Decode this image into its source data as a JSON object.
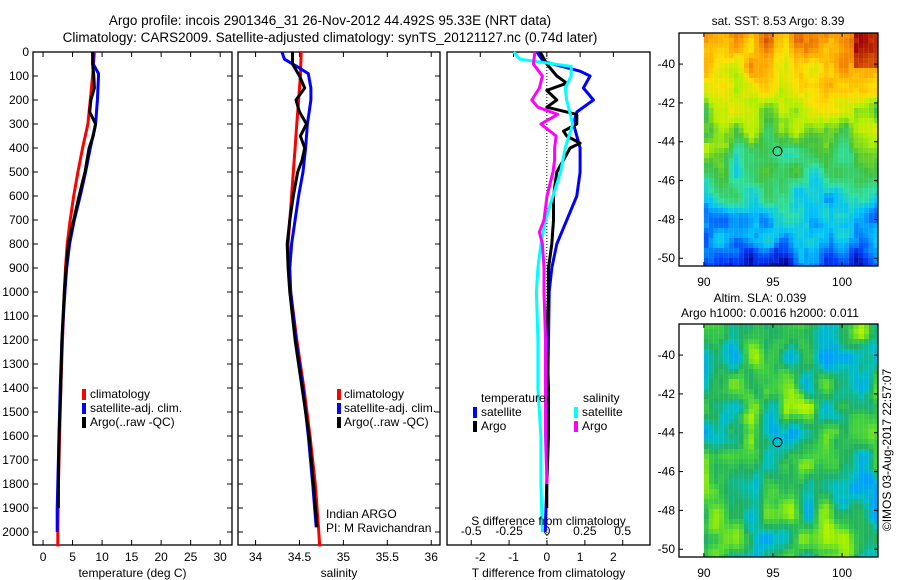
{
  "header": {
    "title_line1": "Argo profile: incois 2901346_31 26-Nov-2012 44.492S 95.33E (NRT data)",
    "title_line2": "Climatology: CARS2009. Satellite-adjusted climatology: synTS_20121127.nc (0.74d later)"
  },
  "chart_data": [
    {
      "type": "line",
      "name": "temperature-profile",
      "xlabel": "temperature (deg C)",
      "ylabel": "depth",
      "xlim": [
        -1.7,
        32
      ],
      "ylim": [
        2060,
        0
      ],
      "xticks": [
        0,
        5,
        10,
        15,
        20,
        25,
        30
      ],
      "yticks": [
        0,
        100,
        200,
        300,
        400,
        500,
        600,
        700,
        800,
        900,
        1000,
        1100,
        1200,
        1300,
        1400,
        1500,
        1600,
        1700,
        1800,
        1900,
        2000
      ],
      "legend": [
        "climatology",
        "satellite-adj. clim.",
        "Argo(..raw -QC)"
      ],
      "legend_position": "lower-middle",
      "series": [
        {
          "name": "climatology",
          "color": "#ff0000",
          "depth": [
            0,
            100,
            200,
            300,
            400,
            500,
            600,
            700,
            800,
            900,
            1000,
            1200,
            1400,
            1600,
            1800,
            2000,
            2060
          ],
          "values": [
            8.7,
            8.4,
            8.0,
            7.6,
            6.7,
            5.9,
            5.2,
            4.6,
            4.1,
            3.8,
            3.6,
            3.3,
            3.0,
            2.8,
            2.6,
            2.5,
            2.5
          ]
        },
        {
          "name": "satellite-adj. clim.",
          "color": "#0000ff",
          "depth": [
            0,
            50,
            90,
            100,
            200,
            300,
            400,
            500,
            600,
            700,
            800,
            900,
            1000,
            1200,
            1400,
            1600,
            1800,
            1900,
            2000
          ],
          "values": [
            8.5,
            8.5,
            9.4,
            9.4,
            9.2,
            8.9,
            8.0,
            7.2,
            6.3,
            5.3,
            4.5,
            4.0,
            3.7,
            3.2,
            2.9,
            2.7,
            2.5,
            2.4,
            2.4
          ]
        },
        {
          "name": "Argo(..raw -QC)",
          "color": "#000000",
          "depth": [
            0,
            50,
            100,
            150,
            200,
            250,
            300,
            350,
            400,
            500,
            600,
            700,
            800,
            900,
            1000,
            1200,
            1400,
            1600,
            1800,
            1900
          ],
          "values": [
            8.4,
            8.4,
            8.6,
            8.7,
            8.1,
            7.9,
            8.9,
            8.5,
            7.8,
            7.1,
            6.1,
            5.2,
            4.3,
            3.9,
            3.6,
            3.2,
            3.0,
            2.7,
            2.6,
            2.6
          ]
        }
      ]
    },
    {
      "type": "line",
      "name": "salinity-profile",
      "xlabel": "salinity",
      "xlim": [
        33.8,
        36.1
      ],
      "ylim": [
        2060,
        0
      ],
      "xticks": [
        34,
        34.5,
        35,
        35.5,
        36
      ],
      "xticklabels": [
        "34",
        "34.5",
        "35",
        "35.5",
        "36"
      ],
      "legend": [
        "climatology",
        "satellite-adj. clim.",
        "Argo(..raw -QC)"
      ],
      "legend_position": "lower-right",
      "annotation": [
        "Indian ARGO",
        "PI: M Ravichandran"
      ],
      "series": [
        {
          "name": "climatology",
          "color": "#ff0000",
          "depth": [
            0,
            100,
            200,
            300,
            400,
            500,
            600,
            700,
            800,
            900,
            1000,
            1200,
            1400,
            1600,
            1800,
            2000,
            2060
          ],
          "values": [
            34.52,
            34.51,
            34.49,
            34.47,
            34.45,
            34.43,
            34.41,
            34.39,
            34.37,
            34.38,
            34.4,
            34.47,
            34.55,
            34.62,
            34.68,
            34.72,
            34.73
          ]
        },
        {
          "name": "satellite-adj. clim.",
          "color": "#0000ff",
          "depth": [
            0,
            30,
            60,
            90,
            150,
            200,
            300,
            400,
            500,
            600,
            700,
            800,
            900,
            1000,
            1200,
            1400,
            1600,
            1800,
            1980
          ],
          "values": [
            34.3,
            34.33,
            34.47,
            34.6,
            34.63,
            34.63,
            34.59,
            34.57,
            34.54,
            34.49,
            34.45,
            34.41,
            34.39,
            34.4,
            34.46,
            34.54,
            34.6,
            34.65,
            34.69
          ]
        },
        {
          "name": "Argo(..raw -QC)",
          "color": "#000000",
          "depth": [
            0,
            50,
            100,
            150,
            200,
            250,
            300,
            350,
            400,
            450,
            500,
            600,
            700,
            800,
            900,
            1000,
            1200,
            1400,
            1600,
            1800,
            1980
          ],
          "values": [
            34.42,
            34.42,
            34.5,
            34.56,
            34.46,
            34.5,
            34.58,
            34.51,
            34.56,
            34.53,
            34.48,
            34.43,
            34.39,
            34.36,
            34.37,
            34.39,
            34.45,
            34.53,
            34.61,
            34.66,
            34.7
          ]
        }
      ]
    },
    {
      "type": "line",
      "name": "difference-profile",
      "xlabel": "T difference from climatology",
      "x2label": "S difference from climatology",
      "xlim": [
        -3,
        3.1
      ],
      "x2lim": [
        -0.66,
        0.68
      ],
      "ylim": [
        2060,
        0
      ],
      "xticks": [
        -2,
        -1,
        0,
        1,
        2
      ],
      "x2ticks": [
        -0.5,
        -0.25,
        0,
        0.25,
        0.5
      ],
      "x2ticklabels": [
        "-0.5",
        "-0.25",
        "0",
        "0.25",
        "0.5"
      ],
      "zero_line": "dotted",
      "legend_groups": [
        {
          "title": "temperature",
          "items": [
            {
              "label": "satellite",
              "color": "#0000ff"
            },
            {
              "label": "Argo",
              "color": "#000000"
            }
          ]
        },
        {
          "title": "salinity",
          "items": [
            {
              "label": "satellite",
              "color": "#00ffff"
            },
            {
              "label": "Argo",
              "color": "#ff00ff"
            }
          ]
        }
      ],
      "series": [
        {
          "name": "temperature satellite",
          "color": "#0000ff",
          "axis": "T",
          "depth": [
            0,
            40,
            80,
            100,
            150,
            200,
            250,
            300,
            400,
            500,
            600,
            700,
            800,
            900,
            1000,
            1200,
            1400,
            1600,
            1800,
            2000
          ],
          "values": [
            -0.3,
            -0.1,
            1.0,
            1.3,
            1.1,
            1.4,
            0.9,
            0.8,
            1.0,
            1.0,
            0.9,
            0.6,
            0.3,
            0.15,
            0.07,
            0.05,
            0.03,
            0.02,
            0.0,
            -0.05
          ]
        },
        {
          "name": "temperature Argo",
          "color": "#000000",
          "axis": "T",
          "depth": [
            0,
            50,
            100,
            130,
            160,
            200,
            230,
            260,
            300,
            330,
            350,
            380,
            400,
            450,
            500,
            600,
            700,
            800,
            900,
            1000,
            1200,
            1400,
            1600,
            1800,
            1900
          ],
          "values": [
            -0.2,
            0.0,
            0.3,
            0.6,
            0.0,
            0.3,
            0.0,
            0.9,
            0.9,
            0.5,
            0.6,
            1.0,
            0.7,
            0.5,
            0.3,
            0.2,
            0.2,
            0.15,
            0.05,
            0.05,
            0.0,
            0.05,
            0.05,
            0.0,
            0.0
          ]
        },
        {
          "name": "salinity satellite",
          "color": "#00ffff",
          "axis": "S",
          "depth": [
            0,
            30,
            60,
            100,
            150,
            200,
            300,
            400,
            500,
            600,
            700,
            800,
            900,
            1000,
            1200,
            1400,
            1600,
            1800,
            2000
          ],
          "values": [
            -0.22,
            -0.18,
            0.16,
            0.16,
            0.12,
            0.13,
            0.17,
            0.12,
            0.09,
            0.04,
            -0.01,
            -0.04,
            -0.06,
            -0.07,
            -0.06,
            -0.06,
            -0.04,
            -0.04,
            -0.03
          ]
        },
        {
          "name": "salinity Argo",
          "color": "#ff00ff",
          "axis": "S",
          "depth": [
            0,
            50,
            100,
            150,
            200,
            230,
            260,
            300,
            350,
            400,
            450,
            500,
            600,
            700,
            750,
            800,
            900,
            1000,
            1200,
            1400,
            1600,
            1800
          ],
          "values": [
            -0.08,
            -0.09,
            -0.03,
            -0.05,
            -0.1,
            -0.06,
            0.07,
            -0.04,
            0.06,
            0.05,
            0.05,
            0.04,
            0.0,
            -0.02,
            -0.05,
            -0.03,
            -0.02,
            -0.02,
            -0.01,
            -0.01,
            -0.01,
            0.0
          ]
        }
      ]
    },
    {
      "type": "heatmap",
      "name": "sst-map",
      "title": "sat. SST: 8.53 Argo: 8.39",
      "xlim": [
        88.2,
        102.6
      ],
      "ylim": [
        -50.4,
        -38.4
      ],
      "xticks": [
        90,
        95,
        100
      ],
      "yticks": [
        -40,
        -42,
        -44,
        -46,
        -48,
        -50
      ],
      "marker": {
        "lon": 95.33,
        "lat": -44.492
      },
      "colormap": [
        "#00008f",
        "#0040ff",
        "#00c0ff",
        "#30e0a0",
        "#40c040",
        "#b0f000",
        "#ffe000",
        "#ffa000",
        "#e06000",
        "#a00000"
      ],
      "description": "warm (orange/red) north, cool (blue) south, green-cyan band near 44-46S"
    },
    {
      "type": "heatmap",
      "name": "sla-map",
      "title": "Altim. SLA: 0.039",
      "subtitle": "Argo h1000: 0.0016 h2000: 0.011",
      "xlim": [
        88.2,
        102.6
      ],
      "ylim": [
        -50.4,
        -38.4
      ],
      "xticks": [
        90,
        95,
        100
      ],
      "yticks": [
        -40,
        -42,
        -44,
        -46,
        -48,
        -50
      ],
      "marker": {
        "lon": 95.33,
        "lat": -44.492
      },
      "colormap": [
        "#00a0ff",
        "#00c0c0",
        "#20b060",
        "#40d040",
        "#a0f000",
        "#e0f000",
        "#ffc000"
      ],
      "description": "mostly green with yellow ridges and scattered cyan/blue lows"
    }
  ],
  "credit": "©IMOS 03-Aug-2017 22:57:07"
}
